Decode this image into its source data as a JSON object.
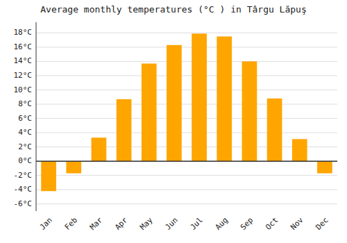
{
  "chart_data": {
    "type": "bar",
    "title": "Average monthly temperatures (°C ) in Târgu Lăpuş",
    "categories": [
      "Jan",
      "Feb",
      "Mar",
      "Apr",
      "May",
      "Jun",
      "Jul",
      "Aug",
      "Sep",
      "Oct",
      "Nov",
      "Dec"
    ],
    "values": [
      -4.2,
      -1.7,
      3.3,
      8.7,
      13.7,
      16.3,
      17.9,
      17.5,
      14.0,
      8.8,
      3.1,
      -1.7
    ],
    "color": "#FFA500",
    "ylim": [
      -7,
      19.5
    ],
    "yticks": [
      {
        "value": -6,
        "label": "-6°C"
      },
      {
        "value": -4,
        "label": "-4°C"
      },
      {
        "value": -2,
        "label": "-2°C"
      },
      {
        "value": 0,
        "label": "0°C"
      },
      {
        "value": 2,
        "label": "2°C"
      },
      {
        "value": 4,
        "label": "4°C"
      },
      {
        "value": 6,
        "label": "6°C"
      },
      {
        "value": 8,
        "label": "8°C"
      },
      {
        "value": 10,
        "label": "10°C"
      },
      {
        "value": 12,
        "label": "12°C"
      },
      {
        "value": 14,
        "label": "14°C"
      },
      {
        "value": 16,
        "label": "16°C"
      },
      {
        "value": 18,
        "label": "18°C"
      }
    ],
    "grid": true
  }
}
